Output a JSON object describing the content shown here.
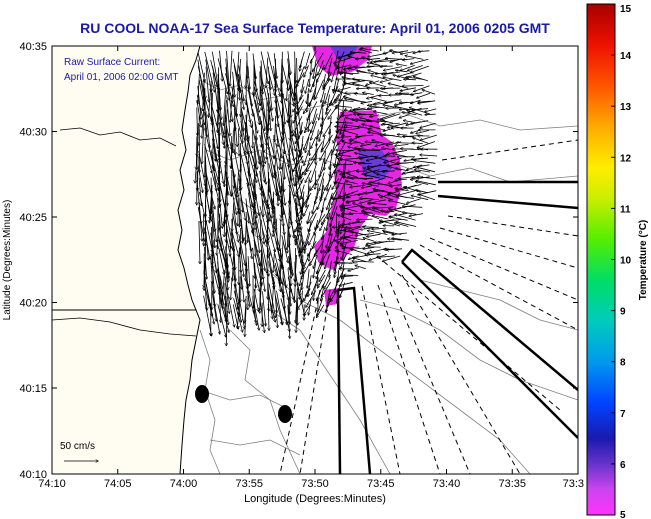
{
  "title": "RU COOL  NOAA-17  Sea Surface Temperature:  April 01, 2006 0205 GMT",
  "annotation": {
    "line1": "Raw Surface Current:",
    "line2": "April 01, 2006 02:00 GMT"
  },
  "scale": {
    "label": "50 cm/s"
  },
  "axes": {
    "xlabel": "Longitude (Degrees:Minutes)",
    "ylabel": "Latitude (Degrees:Minutes)",
    "xticks": [
      "74:10",
      "74:05",
      "74:00",
      "73:55",
      "73:50",
      "73:45",
      "73:40",
      "73:35",
      "73:3"
    ],
    "yticks": [
      "40:35",
      "40:30",
      "40:25",
      "40:20",
      "40:15",
      "40:10"
    ]
  },
  "colorbar": {
    "label": "Temperature (°C)",
    "ticks": [
      "15",
      "14",
      "13",
      "12",
      "11",
      "10",
      "9",
      "8",
      "7",
      "6",
      "5"
    ]
  },
  "colors": {
    "title": "#1a1aa8",
    "annotation": "#1a1aa8",
    "sst_patch": "#e628e6",
    "sst_patch_cool": "#6a3bd8",
    "land": "#fffdf2"
  }
}
